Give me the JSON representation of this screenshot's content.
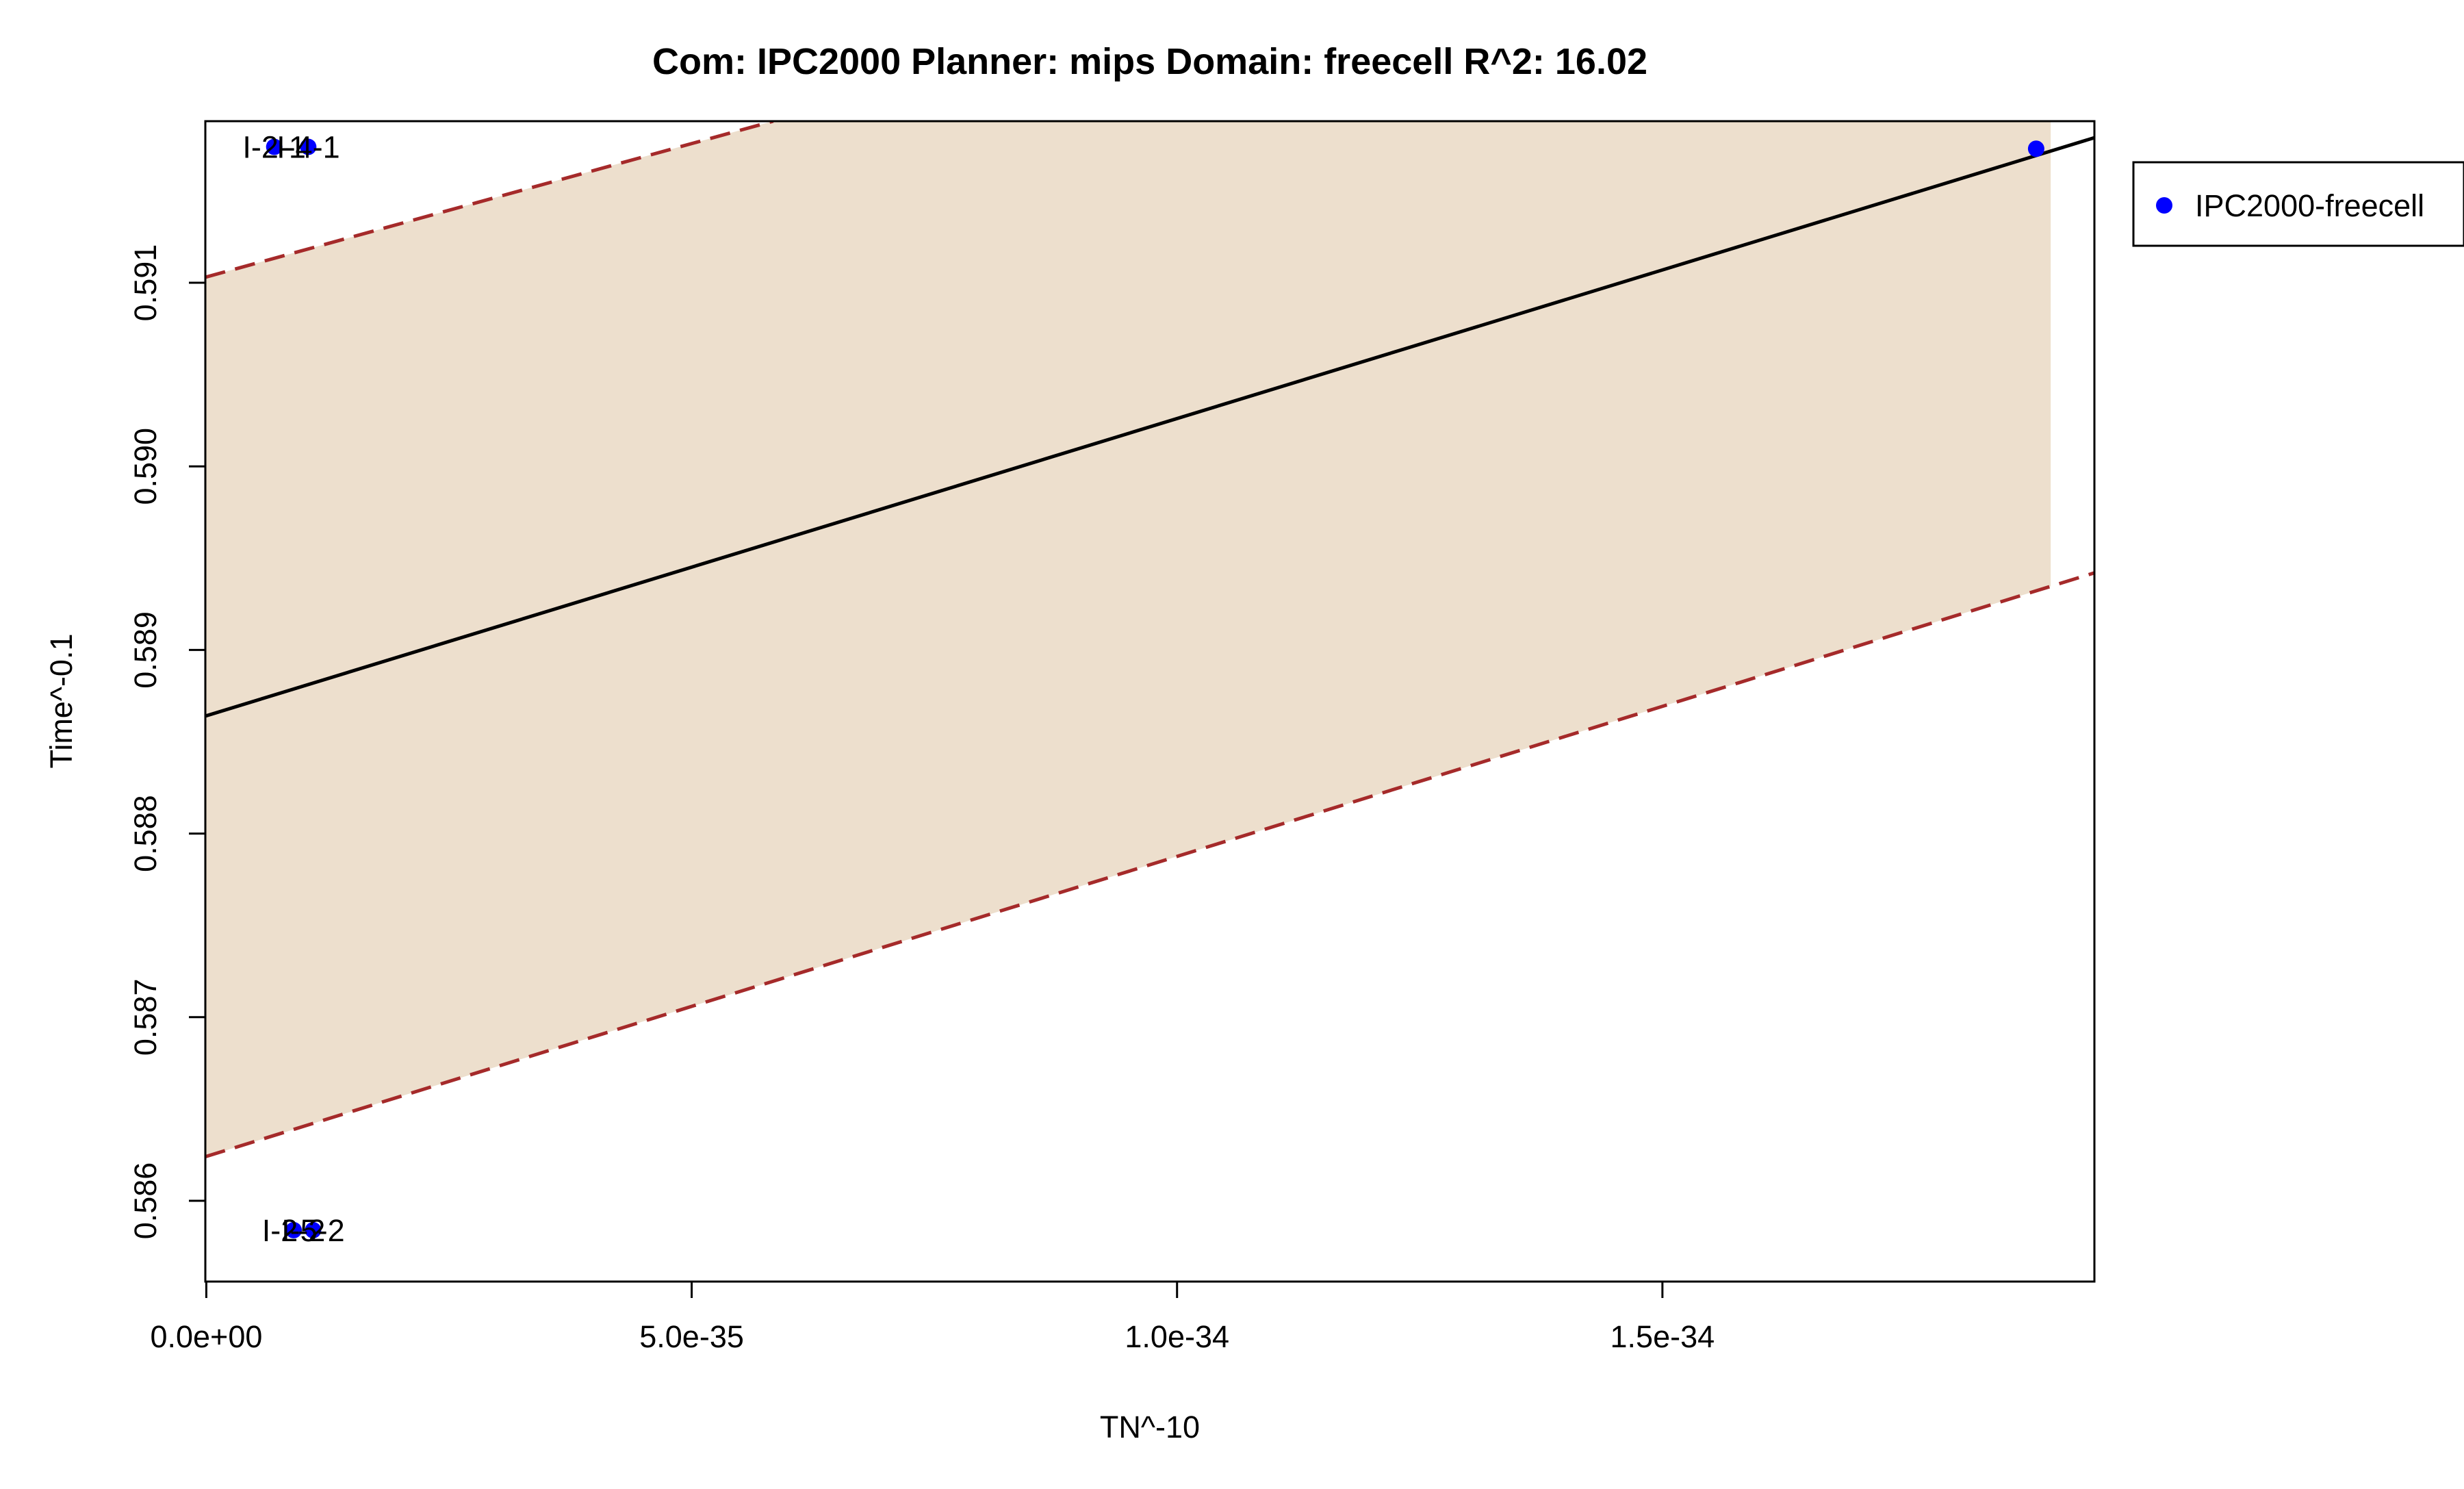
{
  "chart_data": {
    "type": "scatter",
    "title": "Com: IPC2000 Planner: mips Domain: freecell R^2: 16.02",
    "xlabel": "TN^-10",
    "ylabel": "Time^-0.1",
    "xlim": [
      -1e-37,
      1.945e-34
    ],
    "ylim": [
      0.58556,
      0.59188
    ],
    "x_ticks": [
      0,
      5e-35,
      1e-34,
      1.5e-34
    ],
    "x_tick_labels": [
      "0.0e+00",
      "5.0e-35",
      "1.0e-34",
      "1.5e-34"
    ],
    "y_ticks": [
      0.586,
      0.587,
      0.588,
      0.589,
      0.59,
      0.591
    ],
    "y_tick_labels": [
      "0.586",
      "0.587",
      "0.588",
      "0.589",
      "0.590",
      "0.591"
    ],
    "grid": false,
    "legend_position": "right",
    "series": [
      {
        "name": "IPC2000-freecell",
        "color": "#0000ff",
        "points": [
          {
            "x": 7e-36,
            "y": 0.59174,
            "label": "I-2-1"
          },
          {
            "x": 1.05e-35,
            "y": 0.59174,
            "label": "I-4-1"
          },
          {
            "x": 9e-36,
            "y": 0.58584,
            "label": "I-2-2"
          },
          {
            "x": 1.1e-35,
            "y": 0.58584,
            "label": "I-5-2"
          },
          {
            "x": 1.885e-34,
            "y": 0.59173,
            "label": ""
          }
        ]
      }
    ],
    "overlays": {
      "fit": {
        "color": "#000000",
        "x": [
          -1e-37,
          1.945e-34
        ],
        "y": [
          0.58864,
          0.59179
        ]
      },
      "upper_bound": {
        "color": "#a52a2a",
        "x": [
          -1e-37,
          5.84e-35
        ],
        "y": [
          0.59103,
          0.59188
        ]
      },
      "lower_bound": {
        "color": "#a52a2a",
        "x": [
          -1e-37,
          1.945e-34
        ],
        "y": [
          0.58624,
          0.58942
        ]
      },
      "band": {
        "color": "#eddfcd",
        "x_max": 1.9e-34
      }
    }
  }
}
